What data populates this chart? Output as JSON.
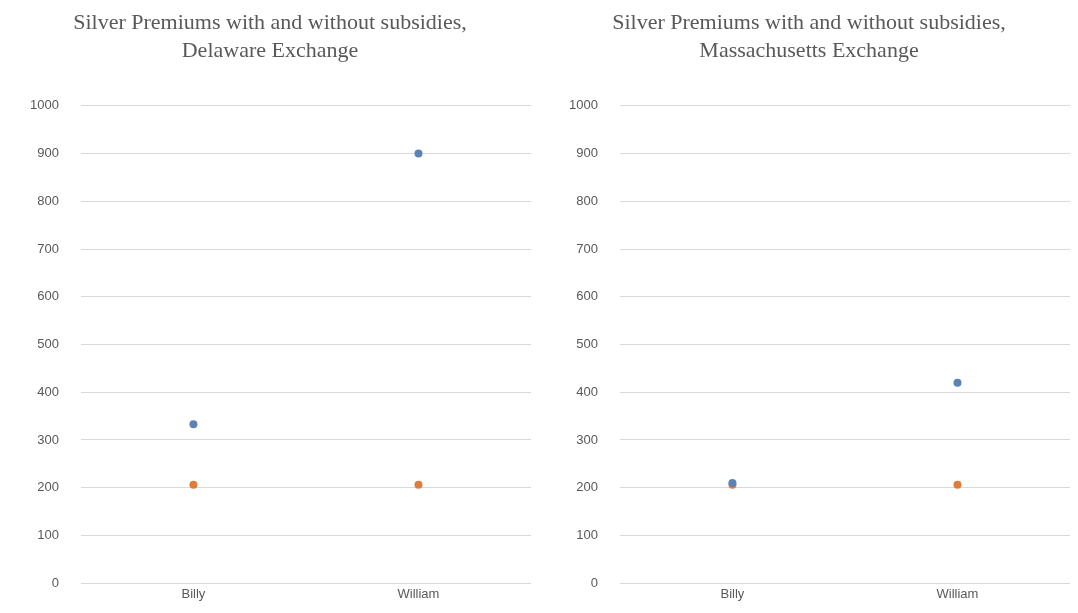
{
  "chart_data": [
    {
      "type": "scatter",
      "title": "Silver Premiums with and without subsidies, Delaware Exchange",
      "categories": [
        "Billy",
        "William"
      ],
      "series": [
        {
          "color": "#5b83b5",
          "values": [
            333,
            900
          ]
        },
        {
          "color": "#e07b39",
          "values": [
            206,
            206
          ]
        }
      ],
      "ylim": [
        0,
        1000
      ],
      "yticks": [
        0,
        100,
        200,
        300,
        400,
        500,
        600,
        700,
        800,
        900,
        1000
      ],
      "grid": "y",
      "marker": "circle"
    },
    {
      "type": "scatter",
      "title": "Silver Premiums with and without subsidies, Massachusetts Exchange",
      "categories": [
        "Billy",
        "William"
      ],
      "series": [
        {
          "color": "#5b83b5",
          "values": [
            210,
            420
          ]
        },
        {
          "color": "#e07b39",
          "values": [
            206,
            206
          ]
        }
      ],
      "ylim": [
        0,
        1000
      ],
      "yticks": [
        0,
        100,
        200,
        300,
        400,
        500,
        600,
        700,
        800,
        900,
        1000
      ],
      "grid": "y",
      "marker": "circle"
    }
  ]
}
